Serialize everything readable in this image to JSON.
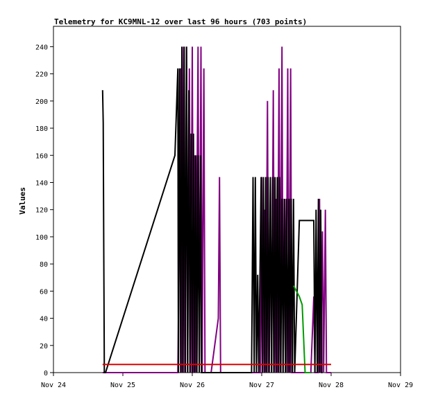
{
  "chart_data": {
    "type": "line",
    "title": "Telemetry for KC9MNL-12 over last 96 hours (703 points)",
    "xlabel": "",
    "ylabel": "Values",
    "x_ticks": [
      "Nov 24",
      "Nov 25",
      "Nov 26",
      "Nov 27",
      "Nov 28",
      "Nov 29"
    ],
    "xlim": [
      0,
      120
    ],
    "y_ticks": [
      0,
      20,
      40,
      60,
      80,
      100,
      120,
      140,
      160,
      180,
      200,
      220,
      240
    ],
    "ylim": [
      0,
      255
    ],
    "grid": false,
    "legend": "none",
    "series": [
      {
        "color": "#800080",
        "points": [
          [
            17,
            0
          ],
          [
            42,
            0
          ],
          [
            43,
            0
          ],
          [
            43.5,
            100
          ],
          [
            44,
            224
          ],
          [
            44.4,
            0
          ],
          [
            45,
            240
          ],
          [
            45.4,
            0
          ],
          [
            46,
            240
          ],
          [
            46.4,
            0
          ],
          [
            47,
            224
          ],
          [
            47.4,
            0
          ],
          [
            48,
            240
          ],
          [
            48.4,
            0
          ],
          [
            48.8,
            160
          ],
          [
            49.2,
            0
          ],
          [
            50,
            240
          ],
          [
            50.4,
            0
          ],
          [
            51,
            240
          ],
          [
            51.4,
            0
          ],
          [
            52,
            224
          ],
          [
            52.4,
            0
          ],
          [
            54.5,
            0
          ],
          [
            57,
            40
          ],
          [
            57.4,
            144
          ],
          [
            57.8,
            0
          ],
          [
            70,
            0
          ],
          [
            71.5,
            0
          ],
          [
            72,
            144
          ],
          [
            72.4,
            0
          ],
          [
            73,
            120
          ],
          [
            73.4,
            0
          ],
          [
            74,
            200
          ],
          [
            74.4,
            0
          ],
          [
            75,
            144
          ],
          [
            75.4,
            0
          ],
          [
            76,
            208
          ],
          [
            76.4,
            0
          ],
          [
            77,
            128
          ],
          [
            77.4,
            0
          ],
          [
            78,
            224
          ],
          [
            78.4,
            0
          ],
          [
            79,
            240
          ],
          [
            79.4,
            0
          ],
          [
            80,
            128
          ],
          [
            80.4,
            0
          ],
          [
            81,
            224
          ],
          [
            81.4,
            0
          ],
          [
            82,
            224
          ],
          [
            82.4,
            0
          ],
          [
            89,
            0
          ],
          [
            90,
            56
          ],
          [
            90.4,
            0
          ],
          [
            91.5,
            0
          ],
          [
            92,
            128
          ],
          [
            92.4,
            0
          ],
          [
            93,
            104
          ],
          [
            93.4,
            0
          ],
          [
            94,
            120
          ],
          [
            94.4,
            0
          ],
          [
            96,
            0
          ]
        ]
      },
      {
        "color": "#000000",
        "points": [
          [
            17,
            208
          ],
          [
            17.2,
            184
          ],
          [
            17.4,
            88
          ],
          [
            17.6,
            0
          ],
          [
            18,
            0
          ],
          [
            42,
            160
          ],
          [
            43,
            224
          ],
          [
            43.2,
            0
          ],
          [
            43.6,
            224
          ],
          [
            44,
            0
          ],
          [
            44.4,
            240
          ],
          [
            44.8,
            0
          ],
          [
            45.2,
            240
          ],
          [
            45.6,
            0
          ],
          [
            46,
            240
          ],
          [
            46.4,
            0
          ],
          [
            46.8,
            208
          ],
          [
            47.2,
            0
          ],
          [
            47.6,
            176
          ],
          [
            48,
            0
          ],
          [
            48.4,
            176
          ],
          [
            48.8,
            0
          ],
          [
            49.2,
            160
          ],
          [
            49.6,
            0
          ],
          [
            50,
            160
          ],
          [
            50.4,
            0
          ],
          [
            50.8,
            160
          ],
          [
            51.2,
            0
          ],
          [
            51.6,
            0
          ],
          [
            68.5,
            0
          ],
          [
            69,
            144
          ],
          [
            69.4,
            0
          ],
          [
            69.8,
            144
          ],
          [
            70.2,
            0
          ],
          [
            70.6,
            72
          ],
          [
            71,
            0
          ],
          [
            71.8,
            144
          ],
          [
            72.2,
            0
          ],
          [
            72.6,
            144
          ],
          [
            73,
            0
          ],
          [
            73.4,
            144
          ],
          [
            73.8,
            0
          ],
          [
            74.2,
            144
          ],
          [
            74.6,
            0
          ],
          [
            75,
            144
          ],
          [
            75.4,
            0
          ],
          [
            75.8,
            144
          ],
          [
            76.2,
            0
          ],
          [
            76.6,
            144
          ],
          [
            77,
            0
          ],
          [
            77.4,
            144
          ],
          [
            77.8,
            0
          ],
          [
            78.2,
            144
          ],
          [
            78.6,
            0
          ],
          [
            79,
            128
          ],
          [
            79.4,
            0
          ],
          [
            79.8,
            128
          ],
          [
            80.2,
            0
          ],
          [
            80.6,
            128
          ],
          [
            81,
            0
          ],
          [
            81.4,
            128
          ],
          [
            81.8,
            0
          ],
          [
            82.2,
            128
          ],
          [
            82.6,
            0
          ],
          [
            83,
            128
          ],
          [
            83.4,
            0
          ],
          [
            85,
            112
          ],
          [
            89,
            112
          ],
          [
            90,
            112
          ],
          [
            90.4,
            0
          ],
          [
            90.8,
            120
          ],
          [
            91.2,
            0
          ],
          [
            91.6,
            128
          ],
          [
            92,
            0
          ],
          [
            92.4,
            120
          ],
          [
            92.8,
            0
          ],
          [
            93,
            0
          ]
        ]
      },
      {
        "color": "#009900",
        "points": [
          [
            83,
            64
          ],
          [
            84,
            60
          ],
          [
            85,
            56
          ],
          [
            86,
            50
          ],
          [
            87,
            0
          ],
          [
            89,
            0
          ]
        ]
      },
      {
        "color": "#dd0000",
        "points": [
          [
            17,
            6
          ],
          [
            96,
            6
          ]
        ]
      }
    ]
  }
}
